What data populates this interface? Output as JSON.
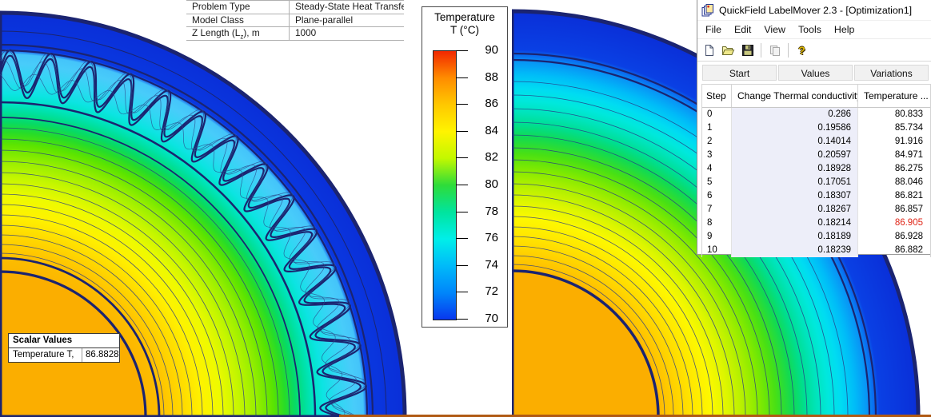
{
  "info_table": {
    "rows": [
      {
        "label": "Problem Type",
        "value": "Steady-State Heat Transfer"
      },
      {
        "label": "Model Class",
        "value": "Plane-parallel"
      }
    ],
    "zlength": {
      "label_pre": "Z Length (L",
      "label_sub": "z",
      "label_post": "), m",
      "value": "1000"
    }
  },
  "legend": {
    "title_line1": "Temperature",
    "title_line2": "T (°C)",
    "ticks": [
      "90",
      "88",
      "86",
      "84",
      "82",
      "80",
      "78",
      "76",
      "74",
      "72",
      "70"
    ],
    "colormap": [
      {
        "t": 90,
        "color": "#f12800"
      },
      {
        "t": 88,
        "color": "#ff8c00"
      },
      {
        "t": 86,
        "color": "#ffc800"
      },
      {
        "t": 84,
        "color": "#fff400"
      },
      {
        "t": 82,
        "color": "#c2f800"
      },
      {
        "t": 80,
        "color": "#2edc3a"
      },
      {
        "t": 78,
        "color": "#00e49e"
      },
      {
        "t": 76,
        "color": "#00efe9"
      },
      {
        "t": 74,
        "color": "#00baf9"
      },
      {
        "t": 72,
        "color": "#0086fa"
      },
      {
        "t": 70,
        "color": "#0837ee"
      }
    ]
  },
  "scalar_values": {
    "title": "Scalar Values",
    "label": "Temperature T,",
    "value": "86.8828"
  },
  "labelmover": {
    "title": "QuickField LabelMover 2.3 - [Optimization1]",
    "menu": [
      "File",
      "Edit",
      "View",
      "Tools",
      "Help"
    ],
    "toolbar": [
      "new",
      "open",
      "save",
      "copy",
      "help"
    ],
    "tabs": [
      "Start",
      "Values",
      "Variations"
    ],
    "table": {
      "columns": [
        "Step",
        "Change Thermal conductivity...",
        "Temperature ..."
      ],
      "highlight_color": "#e02618",
      "rows": [
        {
          "step": "0",
          "value": "0.286",
          "temp": "80.833",
          "highlight": false
        },
        {
          "step": "1",
          "value": "0.19586",
          "temp": "85.734",
          "highlight": false
        },
        {
          "step": "2",
          "value": "0.14014",
          "temp": "91.916",
          "highlight": false
        },
        {
          "step": "3",
          "value": "0.20597",
          "temp": "84.971",
          "highlight": false
        },
        {
          "step": "4",
          "value": "0.18928",
          "temp": "86.275",
          "highlight": false
        },
        {
          "step": "5",
          "value": "0.17051",
          "temp": "88.046",
          "highlight": false
        },
        {
          "step": "6",
          "value": "0.18307",
          "temp": "86.821",
          "highlight": false
        },
        {
          "step": "7",
          "value": "0.18267",
          "temp": "86.857",
          "highlight": false
        },
        {
          "step": "8",
          "value": "0.18214",
          "temp": "86.905",
          "highlight": true
        },
        {
          "step": "9",
          "value": "0.18189",
          "temp": "86.928",
          "highlight": false
        },
        {
          "step": "10",
          "value": "0.18239",
          "temp": "86.882",
          "highlight": false
        }
      ]
    }
  },
  "field_plots": {
    "type": "heatmap",
    "quantity": "Temperature T (°C)",
    "range": [
      70,
      90
    ],
    "core_temperature": "86.8828",
    "left_model": "quarter cross-section with corrugated sheath",
    "right_model": "quarter cross-section, smooth layers"
  }
}
